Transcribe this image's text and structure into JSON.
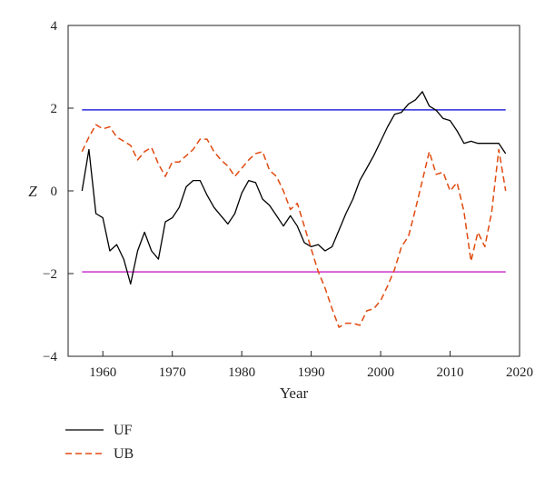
{
  "chart_data": {
    "type": "line",
    "xlabel": "Year",
    "ylabel": "Z",
    "xlim": [
      1955,
      2020
    ],
    "ylim": [
      -4,
      4
    ],
    "x_ticks": [
      1960,
      1970,
      1980,
      1990,
      2000,
      2010,
      2020
    ],
    "y_ticks": [
      -4,
      -2,
      0,
      2,
      4
    ],
    "grid": false,
    "legend_position": "bottom-left, below plot",
    "series": [
      {
        "name": "UF",
        "color": "#000000",
        "style": "solid",
        "x": [
          1957,
          1958,
          1959,
          1960,
          1961,
          1962,
          1963,
          1964,
          1965,
          1966,
          1967,
          1968,
          1969,
          1970,
          1971,
          1972,
          1973,
          1974,
          1975,
          1976,
          1977,
          1978,
          1979,
          1980,
          1981,
          1982,
          1983,
          1984,
          1985,
          1986,
          1987,
          1988,
          1989,
          1990,
          1991,
          1992,
          1993,
          1994,
          1995,
          1996,
          1997,
          1998,
          1999,
          2000,
          2001,
          2002,
          2003,
          2004,
          2005,
          2006,
          2007,
          2008,
          2009,
          2010,
          2011,
          2012,
          2013,
          2014,
          2015,
          2016,
          2017,
          2018
        ],
        "y": [
          0.0,
          1.0,
          -0.55,
          -0.65,
          -1.45,
          -1.3,
          -1.65,
          -2.25,
          -1.45,
          -1.0,
          -1.45,
          -1.65,
          -0.75,
          -0.65,
          -0.4,
          0.1,
          0.25,
          0.25,
          -0.1,
          -0.4,
          -0.6,
          -0.8,
          -0.55,
          -0.05,
          0.25,
          0.2,
          -0.2,
          -0.35,
          -0.6,
          -0.85,
          -0.6,
          -0.85,
          -1.25,
          -1.35,
          -1.3,
          -1.45,
          -1.35,
          -0.95,
          -0.55,
          -0.2,
          0.25,
          0.55,
          0.85,
          1.2,
          1.55,
          1.85,
          1.9,
          2.1,
          2.2,
          2.4,
          2.05,
          1.95,
          1.75,
          1.7,
          1.45,
          1.15,
          1.2,
          1.15,
          1.15,
          1.15,
          1.15,
          0.9
        ]
      },
      {
        "name": "UB",
        "color": "#e04a10",
        "style": "dashed",
        "x": [
          1957,
          1958,
          1959,
          1960,
          1961,
          1962,
          1963,
          1964,
          1965,
          1966,
          1967,
          1968,
          1969,
          1970,
          1971,
          1972,
          1973,
          1974,
          1975,
          1976,
          1977,
          1978,
          1979,
          1980,
          1981,
          1982,
          1983,
          1984,
          1985,
          1986,
          1987,
          1988,
          1989,
          1990,
          1991,
          1992,
          1993,
          1994,
          1995,
          1996,
          1997,
          1998,
          1999,
          2000,
          2001,
          2002,
          2003,
          2004,
          2005,
          2006,
          2007,
          2008,
          2009,
          2010,
          2011,
          2012,
          2013,
          2014,
          2015,
          2016,
          2017,
          2018
        ],
        "y": [
          0.95,
          1.3,
          1.6,
          1.5,
          1.55,
          1.3,
          1.2,
          1.1,
          0.75,
          0.95,
          1.05,
          0.65,
          0.35,
          0.7,
          0.7,
          0.85,
          1.0,
          1.25,
          1.25,
          0.95,
          0.75,
          0.6,
          0.35,
          0.55,
          0.75,
          0.9,
          0.95,
          0.5,
          0.35,
          0.0,
          -0.45,
          -0.3,
          -0.85,
          -1.4,
          -1.95,
          -2.35,
          -2.85,
          -3.3,
          -3.2,
          -3.2,
          -3.25,
          -2.9,
          -2.85,
          -2.65,
          -2.3,
          -1.9,
          -1.35,
          -1.1,
          -0.45,
          0.25,
          0.95,
          0.4,
          0.45,
          0.0,
          0.2,
          -0.5,
          -1.7,
          -1.0,
          -1.35,
          -0.5,
          1.0,
          0.0
        ]
      }
    ],
    "reference_lines": [
      {
        "y": 1.96,
        "color": "#2b2bd9"
      },
      {
        "y": -1.96,
        "color": "#cc33cc"
      }
    ]
  }
}
